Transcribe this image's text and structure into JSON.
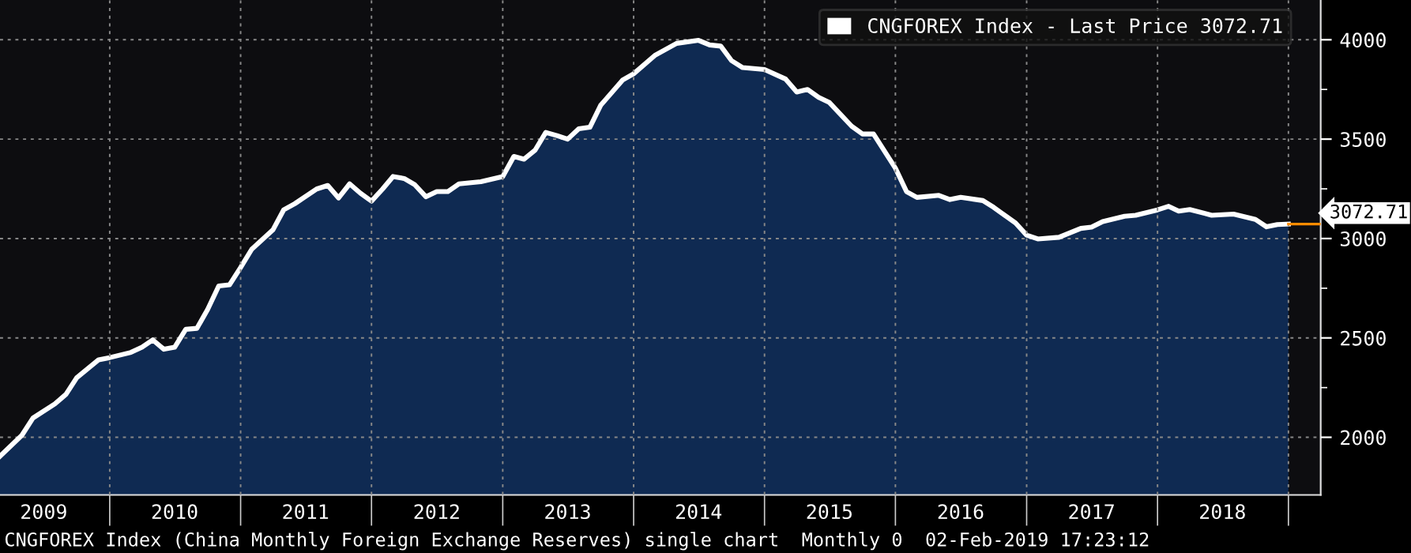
{
  "chart_data": {
    "type": "area",
    "x": [
      "2009-03",
      "2009-05",
      "2009-06",
      "2009-08",
      "2009-09",
      "2009-10",
      "2009-12",
      "2010-01",
      "2010-03",
      "2010-04",
      "2010-05",
      "2010-06",
      "2010-07",
      "2010-08",
      "2010-09",
      "2010-10",
      "2010-11",
      "2010-12",
      "2011-01",
      "2011-02",
      "2011-04",
      "2011-05",
      "2011-06",
      "2011-08",
      "2011-09",
      "2011-10",
      "2011-11",
      "2011-12",
      "2012-01",
      "2012-02",
      "2012-03",
      "2012-04",
      "2012-05",
      "2012-06",
      "2012-07",
      "2012-08",
      "2012-09",
      "2012-11",
      "2013-01",
      "2013-02",
      "2013-03",
      "2013-04",
      "2013-05",
      "2013-06",
      "2013-07",
      "2013-08",
      "2013-09",
      "2013-10",
      "2013-12",
      "2014-01",
      "2014-03",
      "2014-05",
      "2014-07",
      "2014-08",
      "2014-09",
      "2014-10",
      "2014-11",
      "2015-01",
      "2015-03",
      "2015-04",
      "2015-05",
      "2015-06",
      "2015-07",
      "2015-09",
      "2015-10",
      "2015-11",
      "2016-01",
      "2016-02",
      "2016-03",
      "2016-05",
      "2016-06",
      "2016-07",
      "2016-09",
      "2016-10",
      "2016-12",
      "2017-01",
      "2017-02",
      "2017-04",
      "2017-06",
      "2017-07",
      "2017-08",
      "2017-10",
      "2017-11",
      "2018-01",
      "2018-02",
      "2018-03",
      "2018-04",
      "2018-06",
      "2018-08",
      "2018-10",
      "2018-11",
      "2018-12",
      "2019-01"
    ],
    "series": [
      {
        "name": "CNGFOREX Index - Last Price 3072.71",
        "color": "#ffffff",
        "values": [
          1905,
          2010,
          2097,
          2168,
          2216,
          2300,
          2390,
          2401,
          2427,
          2453,
          2490,
          2443,
          2453,
          2543,
          2548,
          2643,
          2761,
          2767,
          2854,
          2946,
          3043,
          3144,
          3175,
          3249,
          3267,
          3204,
          3275,
          3228,
          3188,
          3249,
          3312,
          3302,
          3270,
          3210,
          3236,
          3236,
          3275,
          3286,
          3312,
          3413,
          3399,
          3444,
          3534,
          3518,
          3500,
          3552,
          3560,
          3670,
          3797,
          3829,
          3921,
          3982,
          3997,
          3974,
          3968,
          3895,
          3860,
          3850,
          3802,
          3737,
          3750,
          3710,
          3684,
          3565,
          3526,
          3526,
          3354,
          3236,
          3207,
          3217,
          3196,
          3207,
          3191,
          3157,
          3078,
          3017,
          2998,
          3006,
          3051,
          3057,
          3085,
          3112,
          3117,
          3144,
          3162,
          3138,
          3146,
          3117,
          3123,
          3096,
          3059,
          3070,
          3072.71
        ]
      }
    ],
    "xlim": [
      "2009-03",
      "2019-04"
    ],
    "xticks": [
      {
        "value": "2009-07",
        "label": "2009"
      },
      {
        "value": "2010-01",
        "label": null
      },
      {
        "value": "2010-07",
        "label": "2010"
      },
      {
        "value": "2011-01",
        "label": null
      },
      {
        "value": "2011-07",
        "label": "2011"
      },
      {
        "value": "2012-01",
        "label": null
      },
      {
        "value": "2012-07",
        "label": "2012"
      },
      {
        "value": "2013-01",
        "label": null
      },
      {
        "value": "2013-07",
        "label": "2013"
      },
      {
        "value": "2014-01",
        "label": null
      },
      {
        "value": "2014-07",
        "label": "2014"
      },
      {
        "value": "2015-01",
        "label": null
      },
      {
        "value": "2015-07",
        "label": "2015"
      },
      {
        "value": "2016-01",
        "label": null
      },
      {
        "value": "2016-07",
        "label": "2016"
      },
      {
        "value": "2017-01",
        "label": null
      },
      {
        "value": "2017-07",
        "label": "2017"
      },
      {
        "value": "2018-01",
        "label": null
      },
      {
        "value": "2018-07",
        "label": "2018"
      },
      {
        "value": "2019-01",
        "label": null
      }
    ],
    "ylim": [
      1710,
      4200
    ],
    "yticks": [
      2000,
      {
        "value": 2250,
        "label": null
      },
      2500,
      {
        "value": 2750,
        "label": null
      },
      3000,
      {
        "value": 3250,
        "label": null
      },
      3500,
      {
        "value": 3750,
        "label": null
      },
      4000
    ],
    "ref_lines": [
      {
        "axis": "y",
        "value": 3072.71,
        "label": "3072.71",
        "color": "#ff8c00"
      }
    ],
    "grid": true,
    "legend": "top right",
    "annotations": [
      "CNGFOREX Index (China Monthly Foreign Exchange Reserves) single chart  Monthly 0  02-Feb-2019 17:23:12"
    ]
  }
}
